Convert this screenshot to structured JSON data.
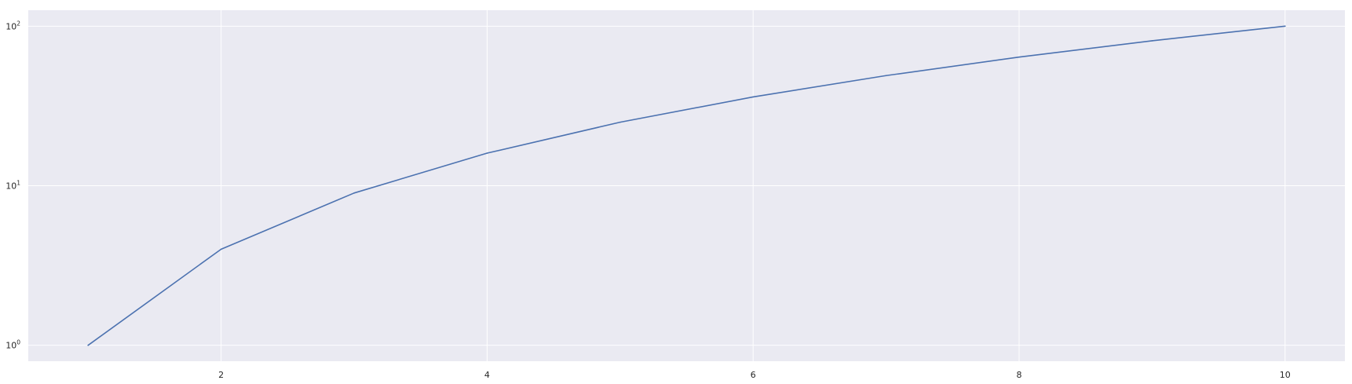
{
  "chart_data": {
    "type": "line",
    "title": "",
    "xlabel": "",
    "ylabel": "",
    "x": [
      1,
      2,
      3,
      4,
      5,
      6,
      7,
      8,
      9,
      10
    ],
    "series": [
      {
        "values": [
          1,
          4,
          9,
          16,
          25,
          36,
          49,
          64,
          81,
          100
        ],
        "color": "#4c72b0"
      }
    ],
    "xlim": [
      0.55,
      10.45
    ],
    "ylim": [
      0.7943,
      125.9
    ],
    "yscale": "log",
    "xticks": [
      2,
      4,
      6,
      8,
      10
    ],
    "xtick_labels": [
      "2",
      "4",
      "6",
      "8",
      "10"
    ],
    "yticks": [
      {
        "value": 1,
        "base": "10",
        "exponent": "0"
      },
      {
        "value": 10,
        "base": "10",
        "exponent": "1"
      },
      {
        "value": 100,
        "base": "10",
        "exponent": "2"
      }
    ],
    "grid": true,
    "legend": false,
    "colors": {
      "background": "#eaeaf2",
      "grid": "#ffffff",
      "line": "#4c72b0"
    }
  }
}
